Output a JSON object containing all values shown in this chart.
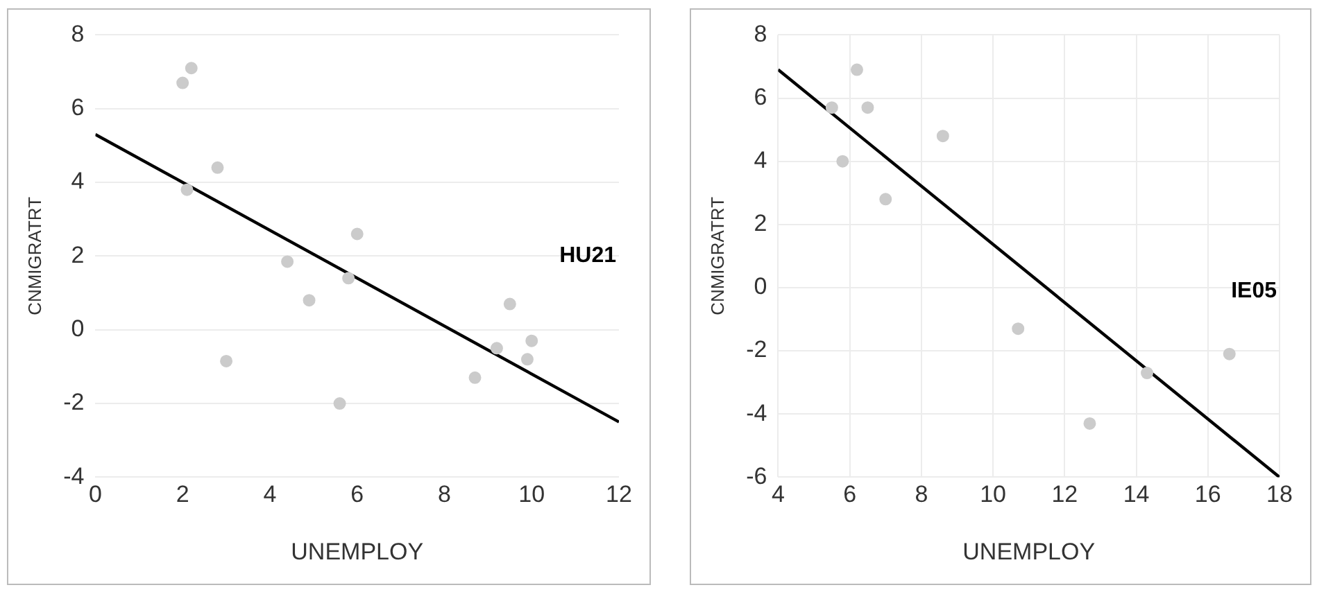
{
  "chart_data": [
    {
      "type": "scatter",
      "xlabel": "UNEMPLOY",
      "ylabel": "CNMIGRATRT",
      "annotations": [
        "HU21"
      ],
      "xlim": [
        0,
        12
      ],
      "xticks": [
        0,
        2,
        4,
        6,
        8,
        10,
        12
      ],
      "ylim": [
        -4,
        8
      ],
      "yticks": [
        -4,
        -2,
        0,
        2,
        4,
        6,
        8
      ],
      "grid": "y",
      "legend": false,
      "series": [
        {
          "type": "scatter",
          "marker": "circle",
          "color": "#cbcbcb",
          "x": [
            2.0,
            2.2,
            2.1,
            2.8,
            3.0,
            4.4,
            4.9,
            5.8,
            6.0,
            5.6,
            8.7,
            9.2,
            9.5,
            9.9,
            10.0
          ],
          "values": [
            6.7,
            7.1,
            3.8,
            4.4,
            -0.85,
            1.85,
            0.8,
            1.4,
            2.6,
            -2.0,
            -1.3,
            -0.5,
            0.7,
            -0.8,
            -0.3
          ]
        },
        {
          "type": "line",
          "color": "#000000",
          "x": [
            0,
            12
          ],
          "values": [
            5.3,
            -2.5
          ]
        }
      ]
    },
    {
      "type": "scatter",
      "xlabel": "UNEMPLOY",
      "ylabel": "CNMIGRATRT",
      "annotations": [
        "IE05"
      ],
      "xlim": [
        4,
        18
      ],
      "xticks": [
        4,
        6,
        8,
        10,
        12,
        14,
        16,
        18
      ],
      "ylim": [
        -6,
        8
      ],
      "yticks": [
        -6,
        -4,
        -2,
        0,
        2,
        4,
        6,
        8
      ],
      "grid": true,
      "legend": false,
      "series": [
        {
          "type": "scatter",
          "marker": "circle",
          "color": "#cbcbcb",
          "x": [
            5.5,
            6.2,
            6.5,
            5.8,
            7.0,
            8.6,
            10.7,
            12.7,
            14.3,
            16.6
          ],
          "values": [
            5.7,
            6.9,
            5.7,
            4.0,
            2.8,
            4.8,
            -1.3,
            -4.3,
            -2.7,
            -2.1
          ]
        },
        {
          "type": "line",
          "color": "#000000",
          "x": [
            4,
            18
          ],
          "values": [
            6.9,
            -6.0
          ]
        }
      ]
    }
  ]
}
